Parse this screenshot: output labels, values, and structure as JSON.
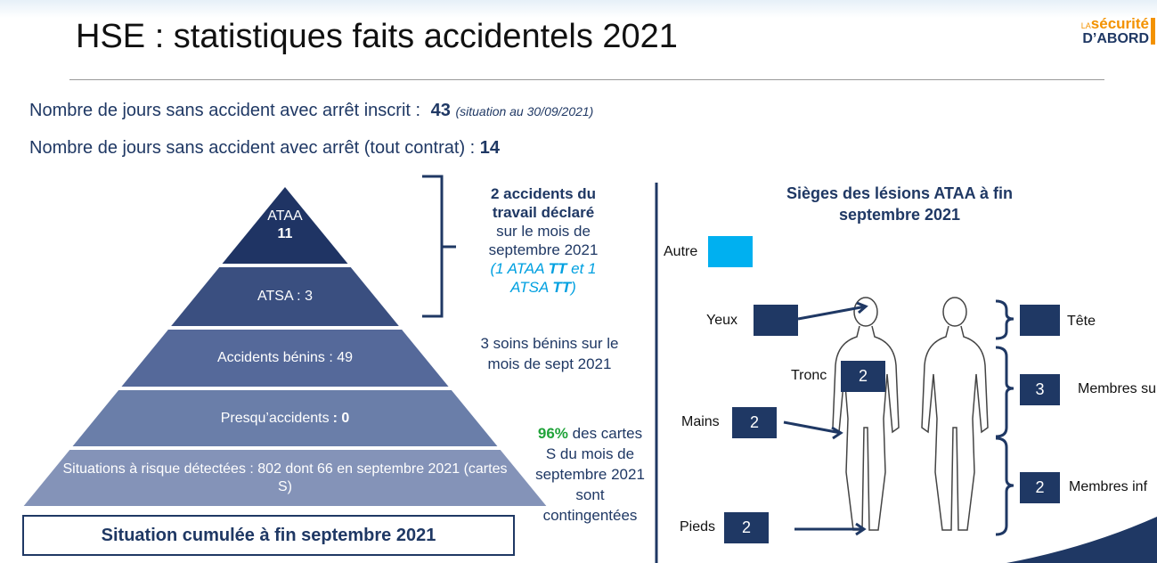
{
  "header": {
    "title": "HSE : statistiques faits accidentels 2021",
    "logo": {
      "small": "LA",
      "word": "sécurité",
      "bottom": "D’ABORD"
    }
  },
  "stats": [
    {
      "text": "Nombre de jours sans accident avec arrêt inscrit :",
      "value": 43,
      "note": "(situation au 30/09/2021)"
    },
    {
      "text": "Nombre de jours sans accident avec arrêt (tout contrat) :",
      "value": 14
    }
  ],
  "pyramid": {
    "levels": [
      {
        "label": "ATAA",
        "value": 11
      },
      {
        "label": "ATSA : 3"
      },
      {
        "label": "Accidents bénins : 49"
      },
      {
        "label": "Presqu’accidents",
        "value": ": 0"
      },
      {
        "label": "Situations à risque détectées : 802 dont 66 en septembre 2021 (cartes S)"
      }
    ],
    "footer": "Situation cumulée à fin septembre 2021"
  },
  "notes": {
    "monthly": {
      "bold": "2 accidents du travail déclaré",
      "text": "sur le mois de septembre 2021",
      "detail": [
        "(1 ATAA ",
        "TT",
        " et 1 ATSA ",
        "TT",
        ")"
      ]
    },
    "care": "3 soins bénins sur le mois de sept 2021",
    "cards": {
      "percent": "96%",
      "text": "des cartes S du mois de septembre 2021 sont contingentées"
    }
  },
  "lesions": {
    "title": "Sièges des lésions ATAA à fin septembre 2021",
    "sites": [
      {
        "label": "Autre",
        "count": null
      },
      {
        "label": "Yeux",
        "count": null
      },
      {
        "label": "Tronc",
        "count": 2
      },
      {
        "label": "Mains",
        "count": 2
      },
      {
        "label": "Pieds",
        "count": 2
      },
      {
        "label": "Tête",
        "count": null
      },
      {
        "label": "Membres su",
        "count": 3
      },
      {
        "label": "Membres inf",
        "count": 2
      }
    ]
  }
}
